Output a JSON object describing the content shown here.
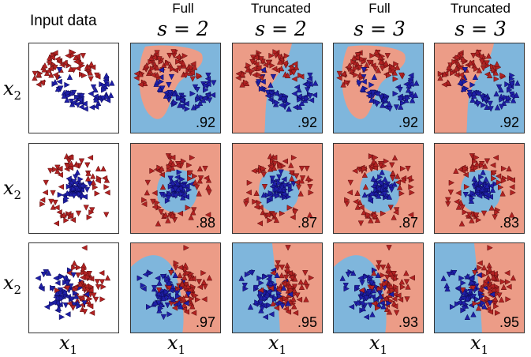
{
  "input_header": "Input data",
  "columns": [
    {
      "title": "Full",
      "param": "s = 2"
    },
    {
      "title": "Truncated",
      "param": "s = 2"
    },
    {
      "title": "Full",
      "param": "s = 3"
    },
    {
      "title": "Truncated",
      "param": "s = 3"
    }
  ],
  "row_axis_label": {
    "base": "x",
    "sub": "2"
  },
  "col_axis_label": {
    "base": "x",
    "sub": "1"
  },
  "colors": {
    "class_red": "#b22222",
    "class_blue": "#1f1fa8",
    "region_red": "#ec9c87",
    "region_blue": "#7fb6dc"
  },
  "chart_data": {
    "type": "scatter",
    "rows": [
      {
        "dataset": "moons",
        "accuracies": [
          ".92",
          ".92",
          ".92",
          ".92"
        ]
      },
      {
        "dataset": "circles",
        "accuracies": [
          ".88",
          ".87",
          ".87",
          ".83"
        ]
      },
      {
        "dataset": "linear",
        "accuracies": [
          ".97",
          ".95",
          ".93",
          ".95"
        ]
      }
    ],
    "classes": [
      "red",
      "blue"
    ]
  }
}
